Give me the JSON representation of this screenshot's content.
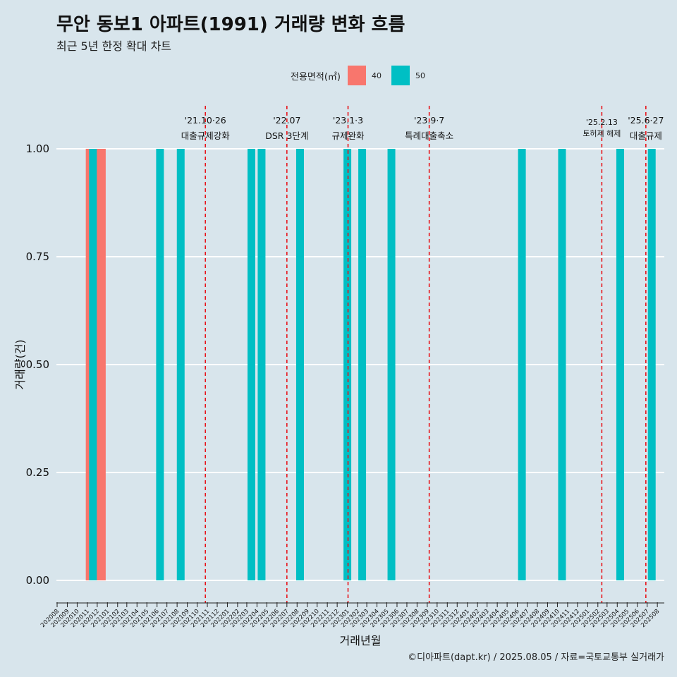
{
  "header": {
    "title": "무안 동보1 아파트(1991) 거래량 변화 흐름",
    "subtitle": "최근 5년 한정 확대 차트"
  },
  "legend": {
    "title": "전용면적(㎡)",
    "items": [
      {
        "label": "40",
        "color": "#F8766D"
      },
      {
        "label": "50",
        "color": "#00BFC4"
      }
    ]
  },
  "footer": "©디아파트(dapt.kr) / 2025.08.05 / 자료=국토교통부 실거래가",
  "chart_data": {
    "type": "bar",
    "xlabel": "거래년월",
    "ylabel": "거래량(건)",
    "ylim": [
      0,
      1
    ],
    "y_ticks": [
      "0.00",
      "0.25",
      "0.50",
      "0.75",
      "1.00"
    ],
    "grid": true,
    "legend_position": "top",
    "categories": [
      "202008",
      "202009",
      "202010",
      "202011",
      "202012",
      "202101",
      "202102",
      "202103",
      "202104",
      "202105",
      "202106",
      "202107",
      "202108",
      "202109",
      "202110",
      "202111",
      "202112",
      "202201",
      "202202",
      "202203",
      "202204",
      "202205",
      "202206",
      "202207",
      "202208",
      "202209",
      "202210",
      "202211",
      "202212",
      "202301",
      "202302",
      "202303",
      "202304",
      "202305",
      "202306",
      "202307",
      "202308",
      "202309",
      "202310",
      "202311",
      "202312",
      "202401",
      "202402",
      "202403",
      "202404",
      "202405",
      "202406",
      "202407",
      "202408",
      "202409",
      "202410",
      "202411",
      "202412",
      "202501",
      "202502",
      "202503",
      "202504",
      "202505",
      "202506",
      "202507",
      "202508"
    ],
    "series": [
      {
        "name": "40",
        "color": "#F8766D",
        "points": [
          {
            "x": "2020-11-08",
            "y": 1
          },
          {
            "x": "2020-12-05",
            "y": 1
          },
          {
            "x": "2020-12-15",
            "y": 1
          }
        ]
      },
      {
        "name": "50",
        "color": "#00BFC4",
        "points": [
          {
            "x": "2020-11-18",
            "y": 1
          },
          {
            "x": "2021-06-10",
            "y": 1
          },
          {
            "x": "2021-08-12",
            "y": 1
          },
          {
            "x": "2022-03-15",
            "y": 1
          },
          {
            "x": "2022-04-15",
            "y": 1
          },
          {
            "x": "2022-08-10",
            "y": 1
          },
          {
            "x": "2023-01-01",
            "y": 1
          },
          {
            "x": "2023-02-15",
            "y": 1
          },
          {
            "x": "2023-05-15",
            "y": 1
          },
          {
            "x": "2024-06-15",
            "y": 1
          },
          {
            "x": "2024-10-15",
            "y": 1
          },
          {
            "x": "2025-04-10",
            "y": 1
          },
          {
            "x": "2025-07-15",
            "y": 1
          }
        ]
      }
    ],
    "events": [
      {
        "date": "2021-10-26",
        "label1": "'21.10·26",
        "label2": "대출규제강화"
      },
      {
        "date": "2022-07-01",
        "label1": "'22.07",
        "label2": "DSR 3단계"
      },
      {
        "date": "2023-01-03",
        "label1": "'23.1·3",
        "label2": "규제완화"
      },
      {
        "date": "2023-09-07",
        "label1": "'23.9·7",
        "label2": "특례대출축소"
      },
      {
        "date": "2025-02-13",
        "label1": "'25.2.13",
        "label2": "토허제 해제"
      },
      {
        "date": "2025-06-27",
        "label1": "'25.6·27",
        "label2": "대출규제"
      }
    ]
  }
}
